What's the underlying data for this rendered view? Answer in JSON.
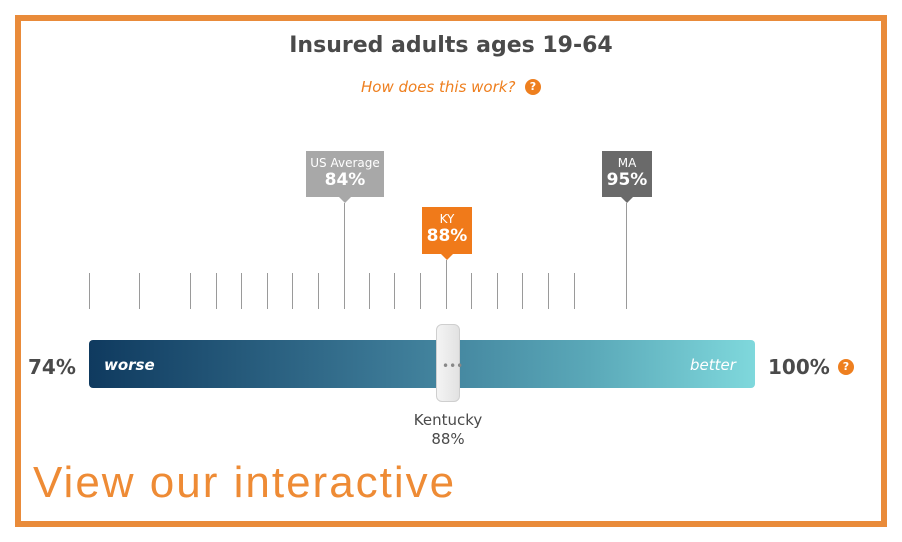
{
  "title": "Insured adults ages 19-64",
  "help_link": "How does this work?",
  "help_icon": "?",
  "scale": {
    "min": "74%",
    "max": "100%",
    "worse": "worse",
    "better": "better",
    "gradient_start": "#0f3a5f",
    "gradient_end": "#7fd8dc"
  },
  "markers": {
    "us": {
      "label": "US Average",
      "value": "84%"
    },
    "ma": {
      "label": "MA",
      "value": "95%"
    },
    "ky": {
      "label": "KY",
      "value": "88%"
    }
  },
  "selected": {
    "name": "Kentucky",
    "value": "88%"
  },
  "handle_grip": "•••",
  "cta": "View our interactive",
  "colors": {
    "accent": "#ee7f1f",
    "frame": "#e98b3a"
  }
}
